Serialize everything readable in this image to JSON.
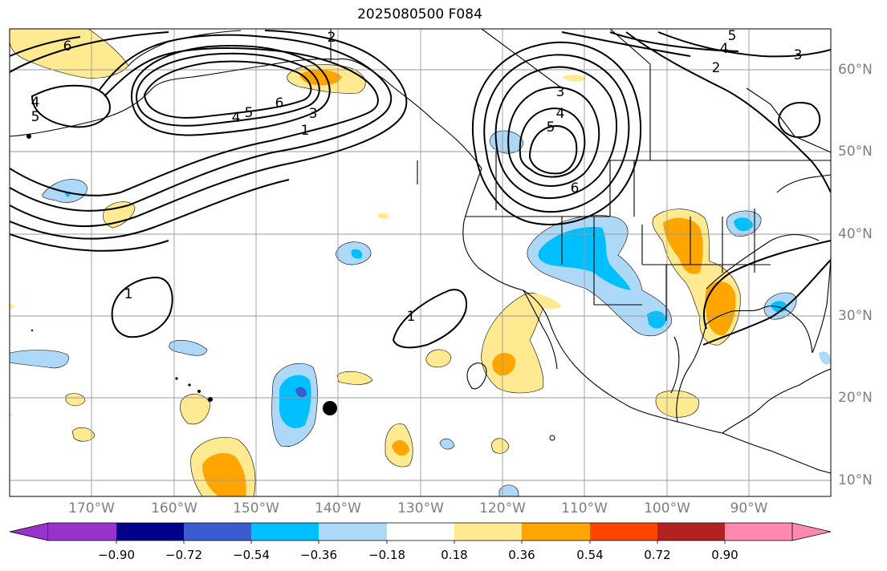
{
  "title": "2025080500 F084",
  "lat_labels": [
    "60°N",
    "50°N",
    "40°N",
    "30°N",
    "20°N",
    "10°N"
  ],
  "lon_labels": [
    "170°W",
    "160°W",
    "150°W",
    "140°W",
    "130°W",
    "120°W",
    "110°W",
    "100°W",
    "90°W"
  ],
  "contour_labels": [
    "6",
    "5",
    "4",
    "4",
    "5",
    "6",
    "3",
    "1",
    "2",
    "3",
    "4",
    "5",
    "6",
    "2",
    "4",
    "5",
    "3",
    "1",
    "1"
  ],
  "colorbar": {
    "colors": [
      "#9932cc",
      "#00008b",
      "#3b5bd1",
      "#00bfff",
      "#add8f7",
      "#ffffff",
      "#ffe991",
      "#ffa500",
      "#ff4500",
      "#b22222",
      "#ff88ae"
    ],
    "tick_labels": [
      "−0.90",
      "−0.72",
      "−0.54",
      "−0.36",
      "−0.18",
      "0.18",
      "0.36",
      "0.54",
      "0.72",
      "0.90"
    ]
  },
  "marker": "point"
}
